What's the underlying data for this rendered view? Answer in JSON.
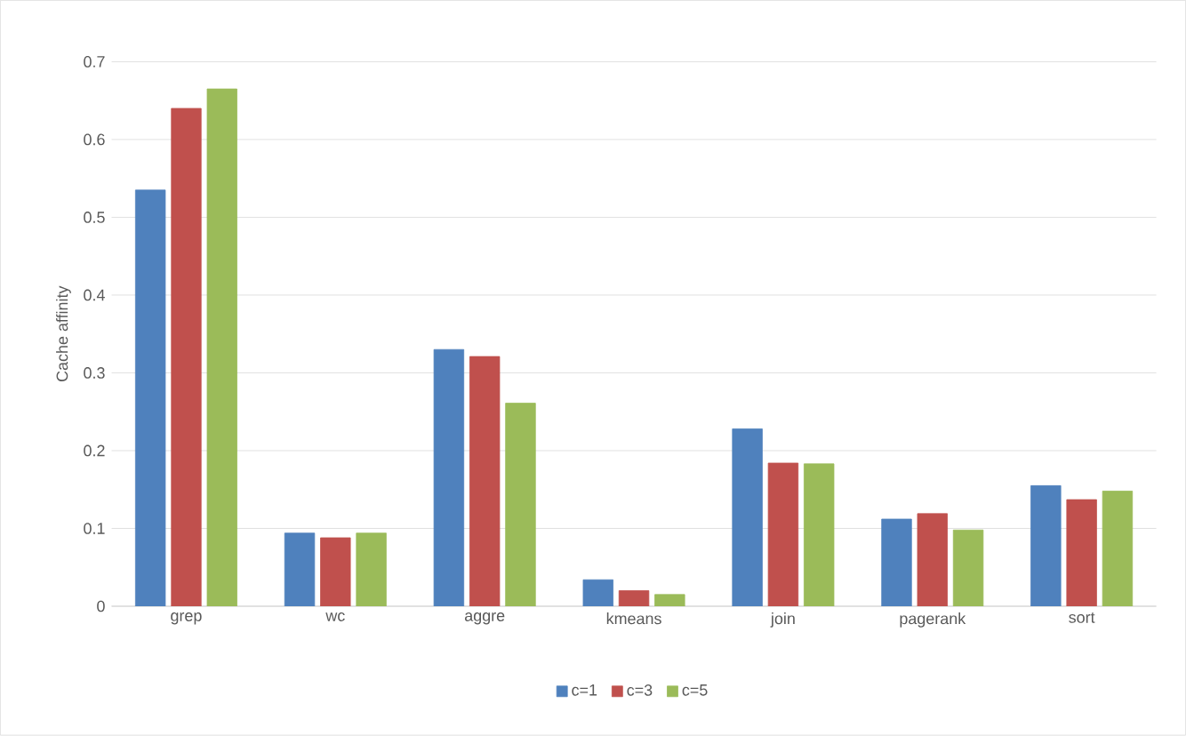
{
  "chart_data": {
    "type": "bar",
    "ylabel": "Cache affinity",
    "categories": [
      "grep",
      "wc",
      "aggre",
      "kmeans",
      "join",
      "pagerank",
      "sort"
    ],
    "series": [
      {
        "name": "c=1",
        "color": "#4f81bd",
        "values": [
          0.535,
          0.094,
          0.33,
          0.034,
          0.228,
          0.112,
          0.155
        ]
      },
      {
        "name": "c=3",
        "color": "#c0504d",
        "values": [
          0.64,
          0.088,
          0.321,
          0.02,
          0.184,
          0.119,
          0.137
        ]
      },
      {
        "name": "c=5",
        "color": "#9bbb59",
        "values": [
          0.665,
          0.094,
          0.261,
          0.015,
          0.183,
          0.098,
          0.148
        ]
      }
    ],
    "ylim": [
      0,
      0.7
    ],
    "yticks": [
      0,
      0.1,
      0.2,
      0.3,
      0.4,
      0.5,
      0.6,
      0.7
    ],
    "grid": "y",
    "legend": "bottom"
  }
}
